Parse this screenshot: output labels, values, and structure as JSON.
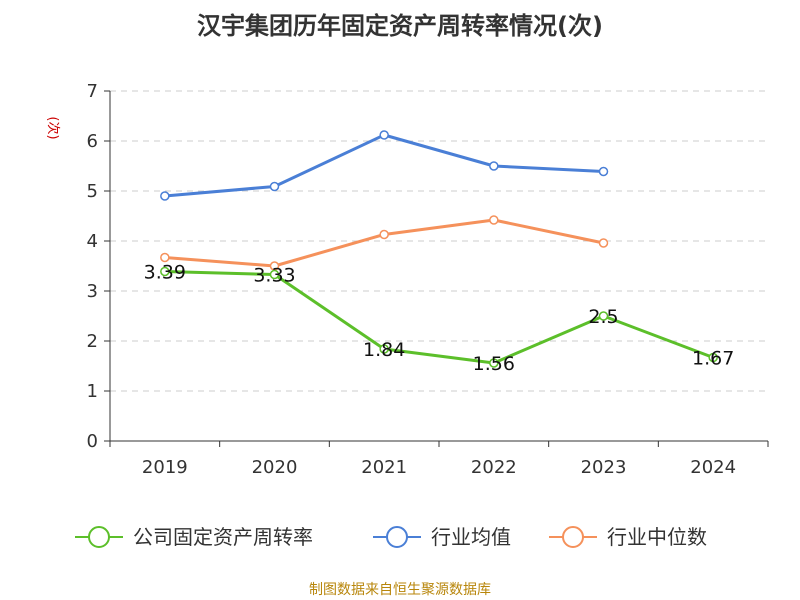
{
  "chart_data": {
    "type": "line",
    "title": "汉宇集团历年固定资产周转率情况(次)",
    "ylabel": "(次)",
    "xlabel": "",
    "categories": [
      "2019",
      "2020",
      "2021",
      "2022",
      "2023",
      "2024"
    ],
    "ylim": [
      0,
      7
    ],
    "yticks": [
      "0",
      "1",
      "2",
      "3",
      "4",
      "5",
      "6",
      "7"
    ],
    "grid": true,
    "legend_position": "bottom",
    "series": [
      {
        "name": "公司固定资产周转率",
        "color": "#5cbf2a",
        "values": [
          3.39,
          3.33,
          1.84,
          1.56,
          2.5,
          1.67
        ],
        "labels": [
          "3.39",
          "3.33",
          "1.84",
          "1.56",
          "2.5",
          "1.67"
        ]
      },
      {
        "name": "行业均值",
        "color": "#4a7fd6",
        "values": [
          4.9,
          5.09,
          6.12,
          5.5,
          5.39,
          null
        ]
      },
      {
        "name": "行业中位数",
        "color": "#f5915b",
        "values": [
          3.67,
          3.5,
          4.13,
          4.42,
          3.96,
          null
        ]
      }
    ]
  },
  "footer": {
    "source": "制图数据来自恒生聚源数据库"
  }
}
